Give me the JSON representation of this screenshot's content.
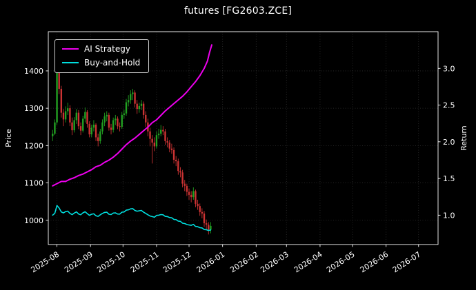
{
  "window": {
    "title": "futures [FG2603.ZCE]"
  },
  "chart_data": {
    "type": "candlestick+line",
    "title": "futures [FG2603.ZCE]",
    "background": "#000000",
    "text_color": "#ffffff",
    "grid": {
      "show": true,
      "color": "#2e2e2e",
      "style": "dotted"
    },
    "legend": {
      "position": "top-left"
    },
    "axes": {
      "x": {
        "epoch": "2025-07-24",
        "domain_days": [
          0,
          360
        ],
        "ticks": [
          {
            "day": 8,
            "label": "2025-08"
          },
          {
            "day": 39,
            "label": "2025-09"
          },
          {
            "day": 69,
            "label": "2025-10"
          },
          {
            "day": 100,
            "label": "2025-11"
          },
          {
            "day": 130,
            "label": "2025-12"
          },
          {
            "day": 161,
            "label": "2026-01"
          },
          {
            "day": 192,
            "label": "2026-02"
          },
          {
            "day": 220,
            "label": "2026-03"
          },
          {
            "day": 251,
            "label": "2026-04"
          },
          {
            "day": 281,
            "label": "2026-05"
          },
          {
            "day": 312,
            "label": "2026-06"
          },
          {
            "day": 342,
            "label": "2026-07"
          }
        ]
      },
      "y_left": {
        "label": "Price",
        "lim": [
          935,
          1505
        ],
        "ticks": [
          {
            "v": 1000,
            "label": "1000"
          },
          {
            "v": 1100,
            "label": "1100"
          },
          {
            "v": 1200,
            "label": "1200"
          },
          {
            "v": 1300,
            "label": "1300"
          },
          {
            "v": 1400,
            "label": "1400"
          }
        ]
      },
      "y_right": {
        "label": "Return",
        "lim": [
          0.6,
          3.5
        ],
        "ticks": [
          {
            "v": 1.0,
            "label": "1.0"
          },
          {
            "v": 1.5,
            "label": "1.5"
          },
          {
            "v": 2.0,
            "label": "2.0"
          },
          {
            "v": 2.5,
            "label": "2.5"
          },
          {
            "v": 3.0,
            "label": "3.0"
          }
        ]
      }
    },
    "candles": {
      "up_color": "#22a022",
      "down_color": "#cc3333",
      "ohlc": [
        [
          4,
          1225,
          1242,
          1212,
          1232
        ],
        [
          6,
          1232,
          1270,
          1228,
          1262
        ],
        [
          8,
          1262,
          1455,
          1255,
          1395
        ],
        [
          10,
          1395,
          1428,
          1338,
          1352
        ],
        [
          12,
          1352,
          1360,
          1275,
          1288
        ],
        [
          14,
          1288,
          1298,
          1252,
          1270
        ],
        [
          16,
          1270,
          1305,
          1262,
          1292
        ],
        [
          18,
          1292,
          1315,
          1282,
          1300
        ],
        [
          20,
          1300,
          1308,
          1252,
          1262
        ],
        [
          22,
          1262,
          1275,
          1228,
          1241
        ],
        [
          24,
          1241,
          1276,
          1235,
          1268
        ],
        [
          26,
          1268,
          1298,
          1258,
          1288
        ],
        [
          28,
          1288,
          1295,
          1244,
          1252
        ],
        [
          30,
          1252,
          1262,
          1228,
          1240
        ],
        [
          32,
          1240,
          1280,
          1235,
          1272
        ],
        [
          34,
          1272,
          1302,
          1262,
          1290
        ],
        [
          36,
          1290,
          1295,
          1248,
          1258
        ],
        [
          38,
          1258,
          1265,
          1222,
          1230
        ],
        [
          40,
          1230,
          1256,
          1222,
          1248
        ],
        [
          42,
          1248,
          1268,
          1238,
          1256
        ],
        [
          44,
          1256,
          1260,
          1212,
          1222
        ],
        [
          46,
          1222,
          1232,
          1198,
          1212
        ],
        [
          48,
          1212,
          1245,
          1205,
          1238
        ],
        [
          50,
          1238,
          1270,
          1230,
          1262
        ],
        [
          52,
          1262,
          1288,
          1252,
          1278
        ],
        [
          54,
          1278,
          1292,
          1265,
          1282
        ],
        [
          56,
          1282,
          1288,
          1240,
          1248
        ],
        [
          58,
          1248,
          1258,
          1230,
          1242
        ],
        [
          60,
          1242,
          1275,
          1235,
          1268
        ],
        [
          62,
          1268,
          1282,
          1255,
          1272
        ],
        [
          64,
          1272,
          1278,
          1244,
          1252
        ],
        [
          66,
          1252,
          1262,
          1238,
          1250
        ],
        [
          68,
          1250,
          1290,
          1245,
          1282
        ],
        [
          70,
          1282,
          1296,
          1272,
          1286
        ],
        [
          72,
          1286,
          1325,
          1280,
          1316
        ],
        [
          74,
          1316,
          1335,
          1305,
          1322
        ],
        [
          76,
          1322,
          1348,
          1312,
          1338
        ],
        [
          78,
          1338,
          1352,
          1322,
          1342
        ],
        [
          80,
          1342,
          1348,
          1302,
          1312
        ],
        [
          82,
          1312,
          1322,
          1285,
          1298
        ],
        [
          84,
          1298,
          1315,
          1288,
          1306
        ],
        [
          86,
          1306,
          1322,
          1295,
          1312
        ],
        [
          88,
          1312,
          1318,
          1272,
          1282
        ],
        [
          90,
          1282,
          1292,
          1250,
          1262
        ],
        [
          92,
          1262,
          1272,
          1225,
          1238
        ],
        [
          94,
          1238,
          1248,
          1198,
          1218
        ],
        [
          96,
          1218,
          1228,
          1152,
          1208
        ],
        [
          98,
          1208,
          1222,
          1185,
          1198
        ],
        [
          100,
          1198,
          1238,
          1192,
          1228
        ],
        [
          102,
          1228,
          1245,
          1218,
          1232
        ],
        [
          104,
          1232,
          1255,
          1225,
          1242
        ],
        [
          106,
          1242,
          1252,
          1228,
          1238
        ],
        [
          108,
          1238,
          1245,
          1202,
          1212
        ],
        [
          110,
          1212,
          1222,
          1195,
          1208
        ],
        [
          112,
          1208,
          1215,
          1182,
          1192
        ],
        [
          114,
          1192,
          1205,
          1178,
          1188
        ],
        [
          116,
          1188,
          1195,
          1152,
          1162
        ],
        [
          118,
          1162,
          1172,
          1145,
          1158
        ],
        [
          120,
          1158,
          1165,
          1122,
          1132
        ],
        [
          122,
          1132,
          1142,
          1115,
          1128
        ],
        [
          124,
          1128,
          1135,
          1088,
          1098
        ],
        [
          126,
          1098,
          1108,
          1078,
          1092
        ],
        [
          128,
          1092,
          1098,
          1065,
          1076
        ],
        [
          130,
          1076,
          1085,
          1055,
          1068
        ],
        [
          132,
          1068,
          1078,
          1048,
          1062
        ],
        [
          134,
          1062,
          1088,
          1055,
          1078
        ],
        [
          136,
          1078,
          1082,
          1035,
          1044
        ],
        [
          138,
          1044,
          1055,
          1028,
          1038
        ],
        [
          140,
          1038,
          1045,
          1012,
          1022
        ],
        [
          142,
          1022,
          1032,
          1005,
          1018
        ],
        [
          144,
          1018,
          1025,
          982,
          992
        ],
        [
          146,
          992,
          1002,
          975,
          988
        ],
        [
          148,
          988,
          995,
          962,
          975
        ],
        [
          150,
          975,
          995,
          965,
          985
        ]
      ]
    },
    "series": [
      {
        "name": "AI Strategy",
        "color": "#ee00ee",
        "axis": "right",
        "width": 2,
        "points": [
          [
            4,
            1.4
          ],
          [
            8,
            1.43
          ],
          [
            12,
            1.46
          ],
          [
            16,
            1.46
          ],
          [
            20,
            1.49
          ],
          [
            24,
            1.51
          ],
          [
            28,
            1.54
          ],
          [
            32,
            1.56
          ],
          [
            36,
            1.59
          ],
          [
            40,
            1.62
          ],
          [
            44,
            1.66
          ],
          [
            48,
            1.68
          ],
          [
            52,
            1.72
          ],
          [
            56,
            1.75
          ],
          [
            60,
            1.79
          ],
          [
            64,
            1.84
          ],
          [
            68,
            1.9
          ],
          [
            72,
            1.96
          ],
          [
            76,
            2.01
          ],
          [
            80,
            2.05
          ],
          [
            84,
            2.1
          ],
          [
            88,
            2.15
          ],
          [
            92,
            2.2
          ],
          [
            96,
            2.26
          ],
          [
            100,
            2.3
          ],
          [
            104,
            2.36
          ],
          [
            108,
            2.42
          ],
          [
            112,
            2.47
          ],
          [
            116,
            2.52
          ],
          [
            120,
            2.57
          ],
          [
            124,
            2.62
          ],
          [
            128,
            2.68
          ],
          [
            132,
            2.75
          ],
          [
            136,
            2.82
          ],
          [
            140,
            2.9
          ],
          [
            144,
            3.0
          ],
          [
            147,
            3.1
          ],
          [
            149,
            3.22
          ],
          [
            151,
            3.32
          ]
        ]
      },
      {
        "name": "Buy-and-Hold",
        "color": "#00dede",
        "axis": "right",
        "width": 1.6,
        "points": [
          [
            4,
            1.0
          ],
          [
            6,
            1.024
          ],
          [
            8,
            1.132
          ],
          [
            10,
            1.097
          ],
          [
            12,
            1.045
          ],
          [
            14,
            1.031
          ],
          [
            16,
            1.049
          ],
          [
            18,
            1.055
          ],
          [
            20,
            1.024
          ],
          [
            22,
            1.007
          ],
          [
            24,
            1.029
          ],
          [
            26,
            1.045
          ],
          [
            28,
            1.016
          ],
          [
            30,
            1.006
          ],
          [
            32,
            1.032
          ],
          [
            34,
            1.047
          ],
          [
            36,
            1.021
          ],
          [
            38,
            0.998
          ],
          [
            40,
            1.013
          ],
          [
            42,
            1.019
          ],
          [
            44,
            0.992
          ],
          [
            46,
            0.984
          ],
          [
            48,
            1.005
          ],
          [
            50,
            1.024
          ],
          [
            52,
            1.037
          ],
          [
            54,
            1.041
          ],
          [
            56,
            1.013
          ],
          [
            58,
            1.008
          ],
          [
            60,
            1.029
          ],
          [
            62,
            1.032
          ],
          [
            64,
            1.016
          ],
          [
            66,
            1.015
          ],
          [
            68,
            1.041
          ],
          [
            70,
            1.044
          ],
          [
            72,
            1.068
          ],
          [
            74,
            1.073
          ],
          [
            76,
            1.086
          ],
          [
            78,
            1.089
          ],
          [
            80,
            1.065
          ],
          [
            82,
            1.054
          ],
          [
            84,
            1.06
          ],
          [
            86,
            1.065
          ],
          [
            88,
            1.041
          ],
          [
            90,
            1.024
          ],
          [
            92,
            1.005
          ],
          [
            94,
            0.989
          ],
          [
            96,
            0.981
          ],
          [
            98,
            0.972
          ],
          [
            100,
            0.997
          ],
          [
            102,
            1.0
          ],
          [
            104,
            1.008
          ],
          [
            106,
            1.005
          ],
          [
            108,
            0.984
          ],
          [
            110,
            0.981
          ],
          [
            112,
            0.968
          ],
          [
            114,
            0.964
          ],
          [
            116,
            0.943
          ],
          [
            118,
            0.94
          ],
          [
            120,
            0.919
          ],
          [
            122,
            0.916
          ],
          [
            124,
            0.891
          ],
          [
            126,
            0.886
          ],
          [
            128,
            0.873
          ],
          [
            130,
            0.867
          ],
          [
            132,
            0.862
          ],
          [
            134,
            0.875
          ],
          [
            136,
            0.847
          ],
          [
            138,
            0.843
          ],
          [
            140,
            0.83
          ],
          [
            142,
            0.826
          ],
          [
            144,
            0.805
          ],
          [
            146,
            0.802
          ],
          [
            148,
            0.791
          ],
          [
            150,
            0.799
          ]
        ]
      }
    ]
  }
}
